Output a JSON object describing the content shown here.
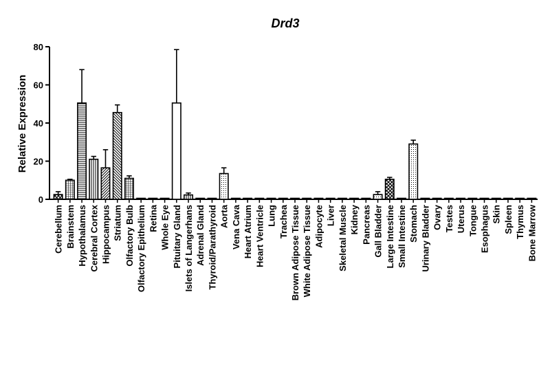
{
  "chart_data": {
    "type": "bar",
    "title": "Drd3",
    "xlabel": "",
    "ylabel": "Relative Expression",
    "ylim": [
      0,
      80
    ],
    "yticks": [
      0,
      20,
      40,
      60,
      80
    ],
    "grid": false,
    "legend": "none",
    "categories": [
      "Cerebellum",
      "Brainstem",
      "Hypothalamus",
      "Cerebral Cortex",
      "Hippocampus",
      "Striatum",
      "Olfactory Bulb",
      "Olfactory Epithelium",
      "Retina",
      "Whole Eye",
      "Pituitary Gland",
      "Islets of Langerhans",
      "Adrenal Gland",
      "Thyroid/Parathyroid",
      "Aorta",
      "Vena Cava",
      "Heart Atrium",
      "Heart Ventricle",
      "Lung",
      "Trachea",
      "Brown Adipose Tissue",
      "White Adipose Tissue",
      "Adipocyte",
      "Liver",
      "Skeletal Muscle",
      "Kidney",
      "Pancreas",
      "Gall Bladder",
      "Large Intestine",
      "Small Intestine",
      "Stomach",
      "Urinary Bladder",
      "Ovary",
      "Testes",
      "Uterus",
      "Tongue",
      "Esophagus",
      "Skin",
      "Spleen",
      "Thymus",
      "Bone Marrow"
    ],
    "values": [
      2.5,
      10,
      50.5,
      21,
      16.5,
      45.5,
      11,
      0.3,
      0.3,
      0.3,
      50.5,
      2.3,
      0.3,
      0.3,
      13.5,
      0.3,
      0.3,
      0.3,
      0.3,
      0.3,
      0.3,
      0.3,
      0.3,
      0.3,
      0.3,
      0.3,
      0.3,
      2.5,
      10.5,
      0.3,
      29,
      0.3,
      0.3,
      0.3,
      0.3,
      0.3,
      0.3,
      0.3,
      0.3,
      0.3,
      0.3
    ],
    "errors": [
      1.5,
      0.5,
      17.5,
      1.5,
      9.5,
      4,
      1.3,
      0,
      0,
      0,
      28,
      1,
      0,
      0,
      3,
      0,
      0,
      0,
      0,
      0,
      0,
      0,
      0,
      0,
      0,
      0,
      0,
      1.5,
      1,
      0,
      2,
      0,
      0,
      0,
      0,
      0,
      0,
      0,
      0,
      0,
      0
    ],
    "patterns": [
      "crosshatch",
      "grid",
      "hlines",
      "vlines",
      "diag-right",
      "diag-left",
      "grid",
      "solid",
      "solid",
      "solid",
      "white",
      "vlines",
      "solid",
      "solid",
      "dots",
      "solid",
      "solid",
      "solid",
      "solid",
      "solid",
      "solid",
      "solid",
      "solid",
      "solid",
      "solid",
      "solid",
      "solid",
      "dots",
      "crosshatch",
      "solid",
      "dots",
      "solid",
      "solid",
      "solid",
      "solid",
      "solid",
      "solid",
      "solid",
      "solid",
      "solid",
      "solid"
    ]
  }
}
